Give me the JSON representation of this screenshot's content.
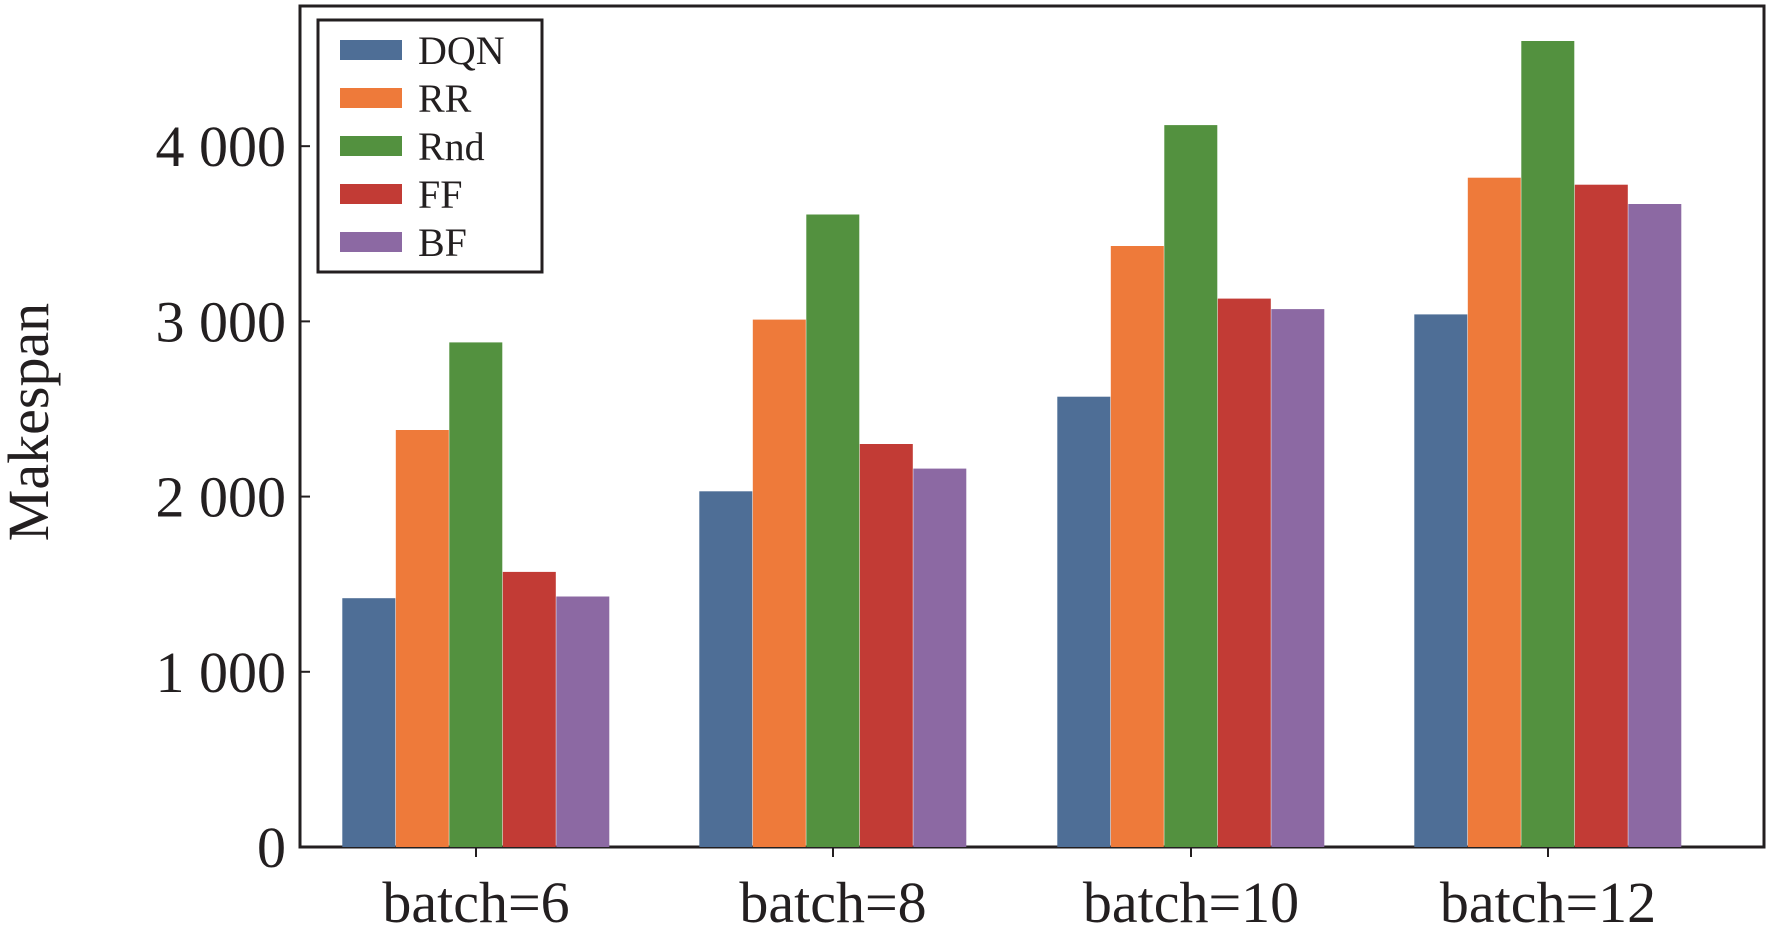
{
  "chart_data": {
    "type": "bar",
    "xlabel": "",
    "ylabel": "Makespan",
    "ylim": [
      0,
      4800
    ],
    "yticks": [
      0,
      1000,
      2000,
      3000,
      4000
    ],
    "ytick_labels": [
      "0",
      "1 000",
      "2 000",
      "3 000",
      "4 000"
    ],
    "categories": [
      "batch=6",
      "batch=8",
      "batch=10",
      "batch=12"
    ],
    "series": [
      {
        "name": "DQN",
        "color": "#4e6e96",
        "values": [
          1420,
          2030,
          2570,
          3040
        ]
      },
      {
        "name": "RR",
        "color": "#ee7a3a",
        "values": [
          2380,
          3010,
          3430,
          3820
        ]
      },
      {
        "name": "Rnd",
        "color": "#53913f",
        "values": [
          2880,
          3610,
          4120,
          4600
        ]
      },
      {
        "name": "FF",
        "color": "#c23b35",
        "values": [
          1570,
          2300,
          3130,
          3780
        ]
      },
      {
        "name": "BF",
        "color": "#8c69a3",
        "values": [
          1430,
          2160,
          3070,
          3670
        ]
      }
    ],
    "grid": false,
    "legend_position": "top-left"
  }
}
